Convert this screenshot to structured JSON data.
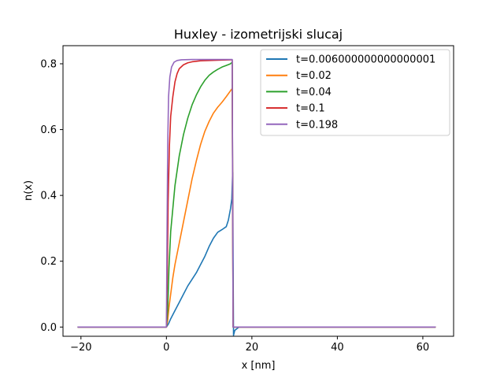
{
  "chart_data": {
    "type": "line",
    "title": "Huxley - izometrijski slucaj",
    "xlabel": "x [nm]",
    "ylabel": "n(x)",
    "xlim": [
      -24.2,
      67.2
    ],
    "ylim": [
      -0.028,
      0.855
    ],
    "xticks": [
      -20,
      0,
      20,
      40,
      60
    ],
    "xtick_labels": [
      "−20",
      "0",
      "20",
      "40",
      "60"
    ],
    "yticks": [
      0.0,
      0.2,
      0.4,
      0.6,
      0.8
    ],
    "ytick_labels": [
      "0.0",
      "0.2",
      "0.4",
      "0.6",
      "0.8"
    ],
    "grid": false,
    "legend_position": "top-right",
    "series": [
      {
        "name": "t=0.006000000000000001",
        "color": "#1f77b4",
        "points": [
          [
            -20.8,
            0
          ],
          [
            0,
            0
          ],
          [
            0.5,
            0.01
          ],
          [
            1,
            0.025
          ],
          [
            2,
            0.05
          ],
          [
            3,
            0.075
          ],
          [
            4,
            0.1
          ],
          [
            5,
            0.125
          ],
          [
            6,
            0.145
          ],
          [
            7,
            0.165
          ],
          [
            8,
            0.19
          ],
          [
            9,
            0.215
          ],
          [
            10,
            0.245
          ],
          [
            11,
            0.27
          ],
          [
            12,
            0.288
          ],
          [
            13,
            0.296
          ],
          [
            14,
            0.305
          ],
          [
            14.5,
            0.325
          ],
          [
            15,
            0.36
          ],
          [
            15.3,
            0.39
          ],
          [
            15.5,
            0.47
          ],
          [
            15.7,
            -0.025
          ],
          [
            16,
            -0.01
          ],
          [
            17,
            0
          ],
          [
            63,
            0
          ]
        ]
      },
      {
        "name": "t=0.02",
        "color": "#ff7f0e",
        "points": [
          [
            -20.8,
            0
          ],
          [
            0,
            0
          ],
          [
            0.3,
            0.02
          ],
          [
            0.6,
            0.06
          ],
          [
            1,
            0.1
          ],
          [
            1.5,
            0.15
          ],
          [
            2,
            0.19
          ],
          [
            3,
            0.255
          ],
          [
            4,
            0.32
          ],
          [
            5,
            0.385
          ],
          [
            6,
            0.45
          ],
          [
            7,
            0.505
          ],
          [
            8,
            0.555
          ],
          [
            9,
            0.595
          ],
          [
            10,
            0.625
          ],
          [
            11,
            0.65
          ],
          [
            12,
            0.668
          ],
          [
            13,
            0.683
          ],
          [
            14,
            0.7
          ],
          [
            15,
            0.718
          ],
          [
            15.4,
            0.725
          ],
          [
            15.6,
            0
          ],
          [
            63,
            0
          ]
        ]
      },
      {
        "name": "t=0.04",
        "color": "#2ca02c",
        "points": [
          [
            -20.8,
            0
          ],
          [
            0,
            0
          ],
          [
            0.3,
            0.05
          ],
          [
            0.6,
            0.18
          ],
          [
            1,
            0.29
          ],
          [
            1.5,
            0.36
          ],
          [
            2,
            0.43
          ],
          [
            3,
            0.52
          ],
          [
            4,
            0.585
          ],
          [
            5,
            0.635
          ],
          [
            6,
            0.675
          ],
          [
            7,
            0.705
          ],
          [
            8,
            0.73
          ],
          [
            9,
            0.75
          ],
          [
            10,
            0.765
          ],
          [
            11,
            0.775
          ],
          [
            12,
            0.783
          ],
          [
            13,
            0.79
          ],
          [
            14,
            0.795
          ],
          [
            15,
            0.8
          ],
          [
            15.4,
            0.805
          ],
          [
            15.6,
            0
          ],
          [
            63,
            0
          ]
        ]
      },
      {
        "name": "t=0.1",
        "color": "#d62728",
        "points": [
          [
            -20.8,
            0
          ],
          [
            0,
            0
          ],
          [
            0.2,
            0.15
          ],
          [
            0.4,
            0.38
          ],
          [
            0.7,
            0.55
          ],
          [
            1,
            0.64
          ],
          [
            1.5,
            0.7
          ],
          [
            2,
            0.745
          ],
          [
            2.5,
            0.77
          ],
          [
            3,
            0.785
          ],
          [
            4,
            0.797
          ],
          [
            5,
            0.803
          ],
          [
            6,
            0.806
          ],
          [
            8,
            0.809
          ],
          [
            10,
            0.81
          ],
          [
            12,
            0.811
          ],
          [
            15,
            0.812
          ],
          [
            15.4,
            0.812
          ],
          [
            15.6,
            0
          ],
          [
            63,
            0
          ]
        ]
      },
      {
        "name": "t=0.198",
        "color": "#9467bd",
        "points": [
          [
            -20.8,
            0
          ],
          [
            0,
            0
          ],
          [
            0.15,
            0.3
          ],
          [
            0.3,
            0.55
          ],
          [
            0.5,
            0.7
          ],
          [
            0.8,
            0.76
          ],
          [
            1.2,
            0.79
          ],
          [
            1.8,
            0.805
          ],
          [
            2.5,
            0.81
          ],
          [
            3.5,
            0.812
          ],
          [
            6,
            0.813
          ],
          [
            10,
            0.813
          ],
          [
            15,
            0.813
          ],
          [
            15.4,
            0.813
          ],
          [
            15.6,
            0
          ],
          [
            63,
            0
          ]
        ]
      }
    ]
  }
}
